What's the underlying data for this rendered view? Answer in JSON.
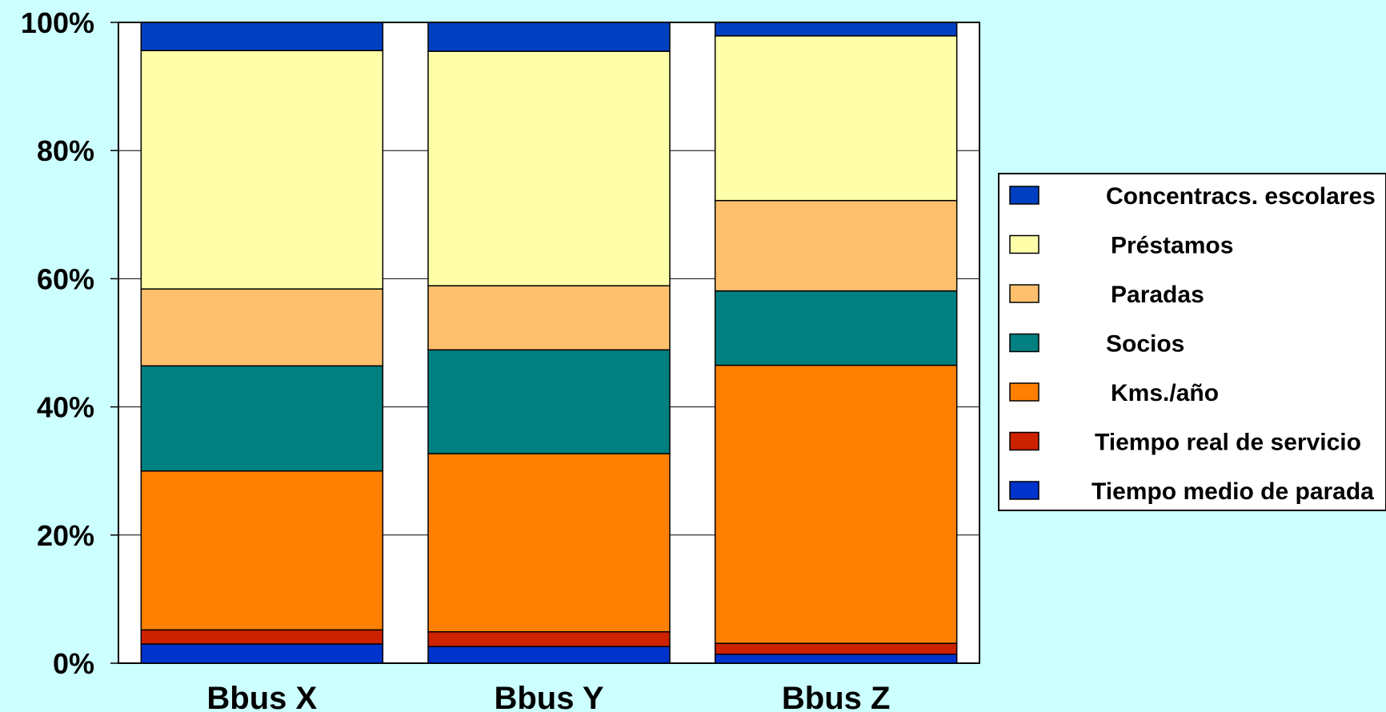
{
  "chart_data": {
    "type": "bar",
    "stacked": true,
    "percent": true,
    "categories": [
      "Bbus X",
      "Bbus Y",
      "Bbus Z"
    ],
    "yticks": [
      "0%",
      "20%",
      "40%",
      "60%",
      "80%",
      "100%"
    ],
    "ylim": [
      0,
      100
    ],
    "grid": true,
    "legend_position": "right",
    "series": [
      {
        "name": "Tiempo medio de parada",
        "color": "#0033CC",
        "values": [
          3.0,
          2.6,
          1.4
        ]
      },
      {
        "name": "Tiempo real de servicio",
        "color": "#CC2200",
        "values": [
          2.2,
          2.3,
          1.7
        ]
      },
      {
        "name": "Kms./año",
        "color": "#FF8000",
        "values": [
          24.8,
          27.8,
          43.4
        ]
      },
      {
        "name": "Socios",
        "color": "#008080",
        "values": [
          16.4,
          16.2,
          11.6
        ]
      },
      {
        "name": "Paradas",
        "color": "#FFC06E",
        "values": [
          12.0,
          10.0,
          14.1
        ]
      },
      {
        "name": "Préstamos",
        "color": "#FFFFAA",
        "values": [
          37.2,
          36.6,
          25.7
        ]
      },
      {
        "name": "Concentracs.  escolares",
        "color": "#0040C0",
        "values": [
          4.4,
          4.5,
          2.1
        ]
      }
    ]
  }
}
